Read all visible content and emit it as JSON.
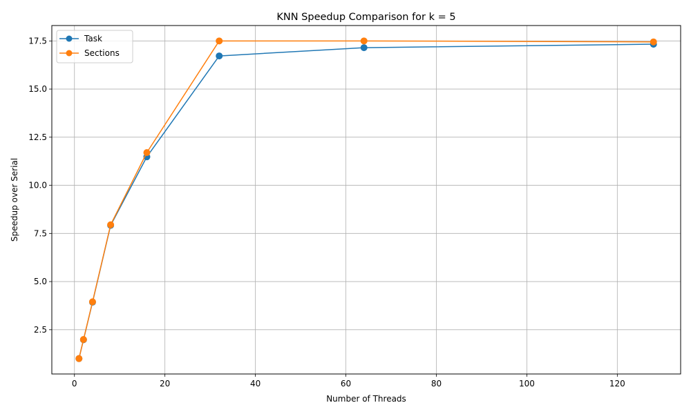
{
  "chart_data": {
    "type": "line",
    "title": "KNN Speedup Comparison for k = 5",
    "xlabel": "Number of Threads",
    "ylabel": "Speedup over Serial",
    "xlim": [
      -5,
      134
    ],
    "ylim": [
      0.2,
      18.3
    ],
    "xticks": [
      0,
      20,
      40,
      60,
      80,
      100,
      120
    ],
    "yticks": [
      2.5,
      5.0,
      7.5,
      10.0,
      12.5,
      15.0,
      17.5
    ],
    "xtick_labels": [
      "0",
      "20",
      "40",
      "60",
      "80",
      "100",
      "120"
    ],
    "ytick_labels": [
      "2.5",
      "5.0",
      "7.5",
      "10.0",
      "12.5",
      "15.0",
      "17.5"
    ],
    "grid": true,
    "legend_position": "top-left",
    "x": [
      1,
      2,
      4,
      8,
      16,
      32,
      64,
      128
    ],
    "series": [
      {
        "name": "Task",
        "color": "#1f77b4",
        "marker": "circle",
        "values": [
          1.0,
          1.98,
          3.93,
          7.92,
          11.48,
          16.72,
          17.15,
          17.33
        ]
      },
      {
        "name": "Sections",
        "color": "#ff7f0e",
        "marker": "circle",
        "values": [
          1.0,
          1.99,
          3.95,
          7.95,
          11.7,
          17.5,
          17.5,
          17.45
        ]
      }
    ]
  }
}
